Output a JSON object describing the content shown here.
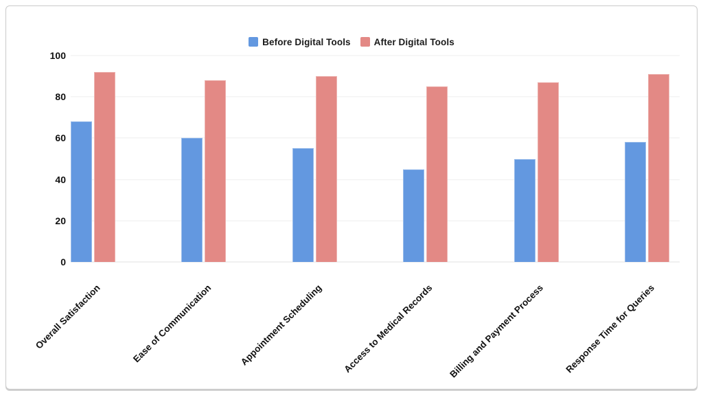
{
  "frame": {
    "background": "#ffffff",
    "border_color": "#c9c9c9"
  },
  "legend": [
    {
      "label": "Before Digital Tools",
      "color": "#6398E0"
    },
    {
      "label": "After Digital Tools",
      "color": "#E38985"
    }
  ],
  "chart_data": {
    "type": "bar",
    "title": "",
    "xlabel": "",
    "ylabel": "",
    "categories": [
      "Overall Satisfaction",
      "Ease of Communication",
      "Appointment Scheduling",
      "Access to Medical Records",
      "Billing and Payment Process",
      "Response Time for Queries"
    ],
    "series": [
      {
        "name": "Before Digital Tools",
        "color": "#6398E0",
        "values": [
          68,
          60,
          55,
          45,
          50,
          58
        ]
      },
      {
        "name": "After Digital Tools",
        "color": "#E38985",
        "values": [
          92,
          88,
          90,
          85,
          87,
          91
        ]
      }
    ],
    "ylim": [
      0,
      100
    ],
    "yticks": [
      0,
      20,
      40,
      60,
      80,
      100
    ],
    "grid": true,
    "gridline_color": "#ededed",
    "legend_position": "top-center",
    "xtick_rotation_deg": 45,
    "text_color": "#111111"
  }
}
